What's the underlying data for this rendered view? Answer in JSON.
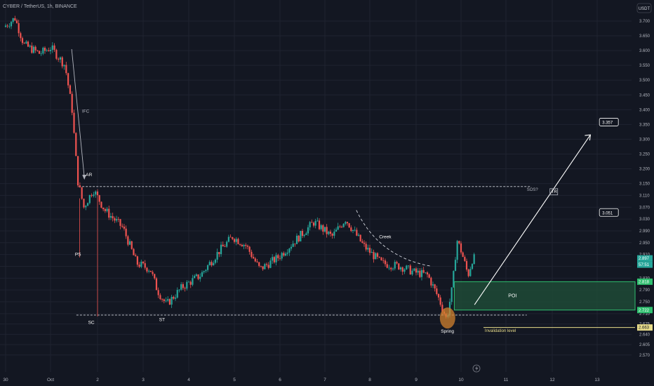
{
  "header": {
    "symbol_line": "CYBER / TetherUS, 1h, BINANCE"
  },
  "axis": {
    "currency": "USDT",
    "price_ticks": [
      "3.700",
      "3.650",
      "3.600",
      "3.550",
      "3.500",
      "3.450",
      "3.400",
      "3.350",
      "3.300",
      "3.250",
      "3.200",
      "3.150",
      "3.110",
      "3.070",
      "3.030",
      "2.990",
      "2.950",
      "2.910",
      "2.870",
      "2.830",
      "2.790",
      "2.750",
      "2.710",
      "2.675",
      "2.640",
      "2.605",
      "2.570"
    ],
    "date_labels": [
      "30",
      "Oct",
      "2",
      "3",
      "4",
      "5",
      "6",
      "7",
      "8",
      "9",
      "10",
      "11",
      "12",
      "13"
    ]
  },
  "annotations": {
    "ifc": "IFC",
    "ar": "AR",
    "ps": "PS",
    "sc": "SC",
    "st": "ST",
    "creek": "Creek",
    "sos": "SOS?",
    "tr": "TR",
    "poi": "POI",
    "spring": "Spring",
    "invalidation": "Invalidation level",
    "target_high": "3.357",
    "target_mid": "3.051"
  },
  "price_tags": {
    "current": "2.897",
    "countdown": "57:51",
    "poi_top": "2.818",
    "poi_bottom": "2.722",
    "invalidation": "2.663"
  },
  "colors": {
    "background": "#131722",
    "bull": "#26a69a",
    "bear": "#ef5350",
    "poi_fill": "#1e4a36",
    "poi_border": "#2fbf6f",
    "invalidation": "#e8dc8a",
    "spring": "#d2822d"
  },
  "chart_data": {
    "type": "candlestick",
    "title": "CYBER / TetherUS, 1h, BINANCE",
    "ylabel": "USDT",
    "ylim": [
      2.56,
      3.74
    ],
    "x_categories": [
      "30",
      "Oct",
      "2",
      "3",
      "4",
      "5",
      "6",
      "7",
      "8",
      "9",
      "10",
      "11",
      "12",
      "13"
    ],
    "price_path": [
      {
        "day": 0.0,
        "price": 3.68
      },
      {
        "day": 0.25,
        "price": 3.71
      },
      {
        "day": 0.45,
        "price": 3.62
      },
      {
        "day": 0.8,
        "price": 3.59
      },
      {
        "day": 1.05,
        "price": 3.61
      },
      {
        "day": 1.35,
        "price": 3.55
      },
      {
        "day": 1.5,
        "price": 3.4
      },
      {
        "day": 1.62,
        "price": 3.16
      },
      {
        "day": 1.75,
        "price": 3.07
      },
      {
        "day": 1.95,
        "price": 3.13
      },
      {
        "day": 2.2,
        "price": 3.06
      },
      {
        "day": 2.6,
        "price": 3.0
      },
      {
        "day": 2.9,
        "price": 2.88
      },
      {
        "day": 3.2,
        "price": 2.86
      },
      {
        "day": 3.35,
        "price": 2.79
      },
      {
        "day": 3.55,
        "price": 2.74
      },
      {
        "day": 3.9,
        "price": 2.8
      },
      {
        "day": 4.3,
        "price": 2.84
      },
      {
        "day": 4.7,
        "price": 2.92
      },
      {
        "day": 5.0,
        "price": 2.97
      },
      {
        "day": 5.3,
        "price": 2.94
      },
      {
        "day": 5.6,
        "price": 2.86
      },
      {
        "day": 6.0,
        "price": 2.9
      },
      {
        "day": 6.4,
        "price": 2.96
      },
      {
        "day": 6.8,
        "price": 3.02
      },
      {
        "day": 7.2,
        "price": 2.97
      },
      {
        "day": 7.5,
        "price": 3.03
      },
      {
        "day": 7.9,
        "price": 2.94
      },
      {
        "day": 8.3,
        "price": 2.88
      },
      {
        "day": 8.7,
        "price": 2.87
      },
      {
        "day": 9.0,
        "price": 2.85
      },
      {
        "day": 9.3,
        "price": 2.84
      },
      {
        "day": 9.55,
        "price": 2.76
      },
      {
        "day": 9.72,
        "price": 2.69
      },
      {
        "day": 9.85,
        "price": 2.8
      },
      {
        "day": 9.95,
        "price": 2.96
      },
      {
        "day": 10.05,
        "price": 2.92
      },
      {
        "day": 10.2,
        "price": 2.84
      },
      {
        "day": 10.3,
        "price": 2.897
      }
    ],
    "levels": {
      "trading_range_top": 3.14,
      "trading_range_bottom": 2.705,
      "poi_top": 2.818,
      "poi_bottom": 2.722,
      "invalidation": 2.663,
      "target_high": 3.357,
      "target_mid": 3.051,
      "current_price": 2.897
    },
    "events": [
      {
        "label": "IFC",
        "day": 1.5
      },
      {
        "label": "AR",
        "day": 1.7
      },
      {
        "label": "PS",
        "day": 1.6
      },
      {
        "label": "SC",
        "day": 2.0
      },
      {
        "label": "ST",
        "day": 3.5
      },
      {
        "label": "Creek",
        "day": 8.3
      },
      {
        "label": "Spring",
        "day": 9.7
      },
      {
        "label": "SOS?",
        "day": 11.7
      }
    ]
  }
}
